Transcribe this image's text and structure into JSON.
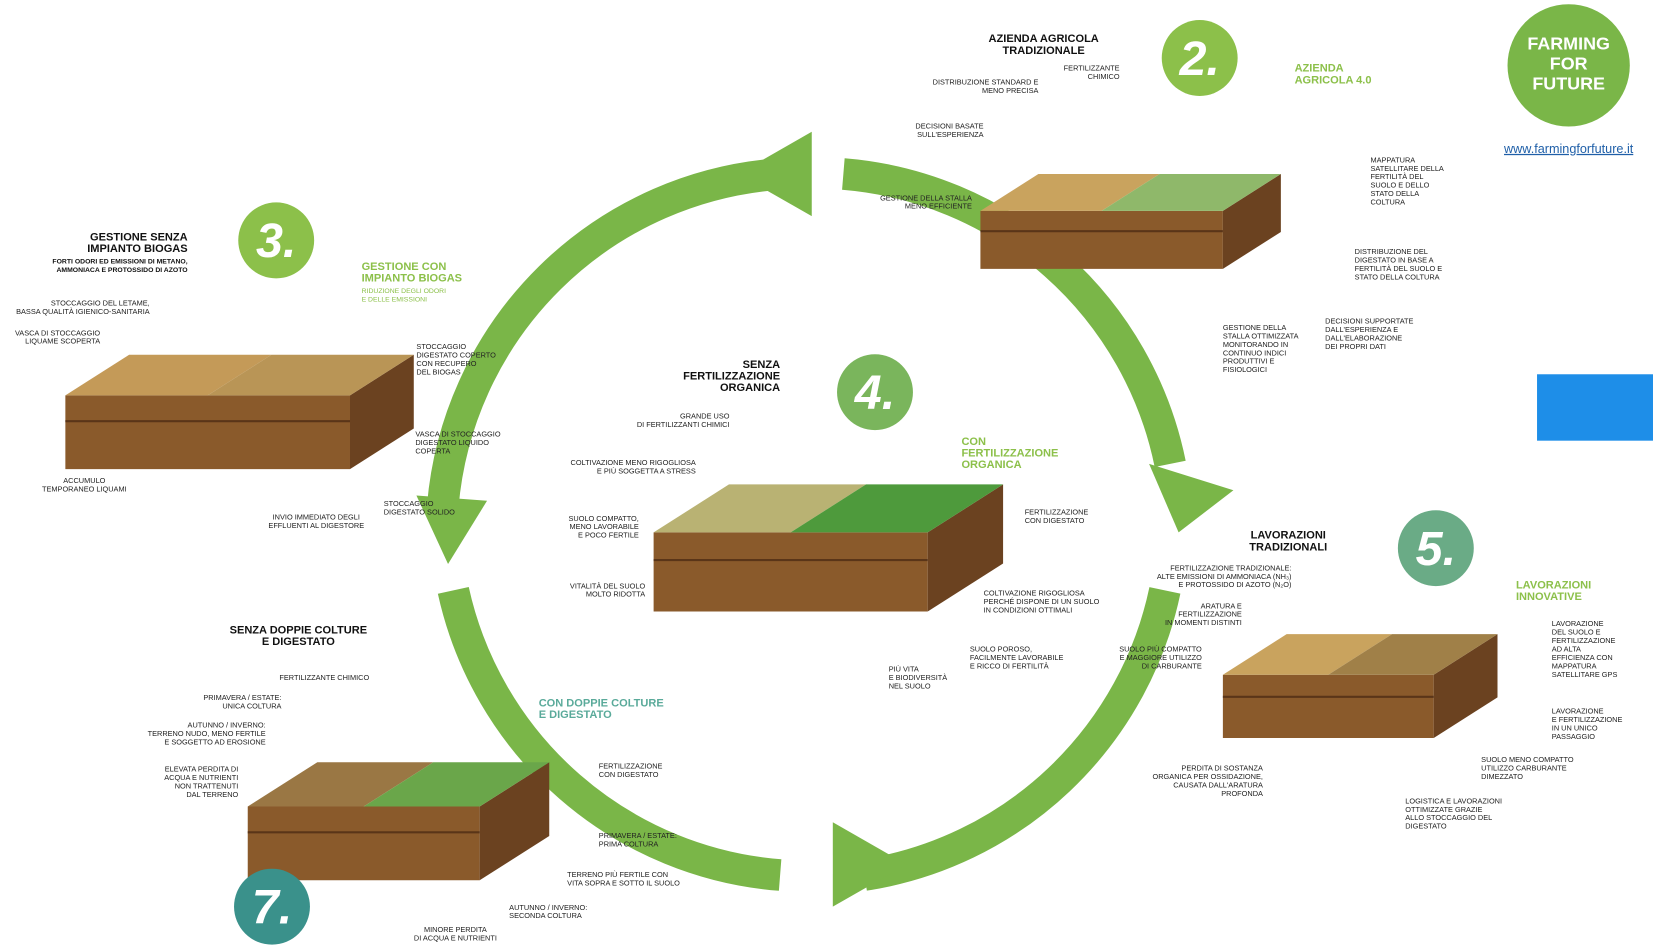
{
  "logo": {
    "lines": [
      "FARMING",
      "FOR",
      "FUTURE"
    ],
    "url": "www.farmingforfuture.it"
  },
  "section_2": {
    "number": "2.",
    "title": [
      "AZIENDA  AGRICOLA",
      "TRADIZIONALE"
    ],
    "title_innovative": [
      "AZIENDA",
      "AGRICOLA 4.0"
    ],
    "labels": [
      [
        "FERTILIZZANTE",
        "CHIMICO"
      ],
      [
        "DISTRIBUZIONE STANDARD E",
        "MENO PRECISA"
      ],
      [
        "DECISIONI BASATE",
        "SULL'ESPERIENZA"
      ],
      [
        "GESTIONE DELLA STALLA",
        "MENO EFFICIENTE"
      ],
      [
        "MAPPATURA",
        "SATELLITARE DELLA",
        "FERTILITÀ DEL",
        "SUOLO E DELLO",
        "STATO DELLA",
        "COLTURA"
      ],
      [
        "DISTRIBUZIONE DEL",
        "DIGESTATO IN BASE A",
        "FERTILITÀ DEL SUOLO E",
        "STATO DELLA COLTURA"
      ],
      [
        "DECISIONI SUPPORTATE",
        "DALL'ESPERIENZA E",
        "DALL'ELABORAZIONE",
        "DEI PROPRI DATI"
      ],
      [
        "GESTIONE DELLA",
        "STALLA OTTIMIZZATA",
        "MONITORANDO IN",
        "CONTINUO INDICI",
        "PRODUTTIVI E",
        "FISIOLOGICI"
      ]
    ]
  },
  "section_3": {
    "number": "3.",
    "title": [
      "GESTIONE SENZA",
      "IMPIANTO BIOGAS"
    ],
    "subtitle": [
      "FORTI ODORI ED EMISSIONI DI METANO,",
      "AMMONIACA E PROTOSSIDO DI AZOTO"
    ],
    "title_innovative": [
      "GESTIONE CON",
      "IMPIANTO BIOGAS"
    ],
    "subtitle_innovative": [
      "RIDUZIONE DEGLI ODORI",
      "E DELLE EMISSIONI"
    ],
    "labels": [
      [
        "STOCCAGGIO DEL LETAME,",
        "BASSA QUALITÀ IGIENICO-SANITARIA"
      ],
      [
        "VASCA DI STOCCAGGIO",
        "LIQUAME SCOPERTA"
      ],
      [
        "STOCCAGGIO",
        "DIGESTATO COPERTO",
        "CON RECUPERO",
        "DEL BIOGAS"
      ],
      [
        "VASCA DI STOCCAGGIO",
        "DIGESTATO LIQUIDO",
        "COPERTA"
      ],
      [
        "STOCCAGGIO",
        "DIGESTATO SOLIDO"
      ],
      [
        "INVIO IMMEDIATO DEGLI",
        "EFFLUENTI AL DIGESTORE"
      ],
      [
        "ACCUMULO",
        "TEMPORANEO LIQUAMI"
      ]
    ]
  },
  "section_4": {
    "number": "4.",
    "title": [
      "SENZA",
      "FERTILIZZAZIONE",
      "ORGANICA"
    ],
    "title_innovative": [
      "CON",
      "FERTILIZZAZIONE",
      "ORGANICA"
    ],
    "labels": [
      [
        "GRANDE USO",
        "DI FERTILIZZANTI CHIMICI"
      ],
      [
        "COLTIVAZIONE MENO RIGOGLIOSA",
        "E PIÙ SOGGETTA A STRESS"
      ],
      [
        "SUOLO COMPATTO,",
        "MENO LAVORABILE",
        "E POCO FERTILE"
      ],
      [
        "VITALITÀ DEL SUOLO",
        "MOLTO RIDOTTA"
      ],
      [
        "FERTILIZZAZIONE",
        "CON DIGESTATO"
      ],
      [
        "COLTIVAZIONE RIGOGLIOSA",
        "PERCHÉ DISPONE DI UN SUOLO",
        "IN CONDIZIONI OTTIMALI"
      ],
      [
        "SUOLO POROSO,",
        "FACILMENTE LAVORABILE",
        "E RICCO DI FERTILITÀ"
      ],
      [
        "PIÙ VITA",
        "E BIODIVERSITÀ",
        "NEL SUOLO"
      ]
    ]
  },
  "section_5": {
    "number": "5.",
    "title": [
      "LAVORAZIONI",
      "TRADIZIONALI"
    ],
    "title_innovative": [
      "LAVORAZIONI",
      "INNOVATIVE"
    ],
    "labels": [
      [
        "FERTILIZZAZIONE TRADIZIONALE:",
        "ALTE EMISSIONI DI AMMONIACA (NH₃)",
        "E PROTOSSIDO DI AZOTO (N₂O)"
      ],
      [
        "ARATURA E",
        "FERTILIZZAZIONE",
        "IN MOMENTI DISTINTI"
      ],
      [
        "SUOLO PIÙ COMPATTO",
        "E MAGGIORE UTILIZZO",
        "DI CARBURANTE"
      ],
      [
        "LAVORAZIONE",
        "DEL SUOLO E",
        "FERTILIZZAZIONE",
        "AD ALTA",
        "EFFICIENZA CON",
        "MAPPATURA",
        "SATELLITARE GPS"
      ],
      [
        "LAVORAZIONE",
        "E FERTILIZZAZIONE",
        "IN UN UNICO",
        "PASSAGGIO"
      ],
      [
        "SUOLO MENO COMPATTO",
        "UTILIZZO CARBURANTE",
        "DIMEZZATO"
      ],
      [
        "PERDITA DI SOSTANZA",
        "ORGANICA PER OSSIDAZIONE,",
        "CAUSATA DALL'ARATURA",
        "PROFONDA"
      ],
      [
        "LOGISTICA E LAVORAZIONI",
        "OTTIMIZZATE GRAZIE",
        "ALLO STOCCAGGIO DEL",
        "DIGESTATO"
      ]
    ]
  },
  "section_7": {
    "number": "7.",
    "title": [
      "SENZA DOPPIE COLTURE",
      "E DIGESTATO"
    ],
    "title_innovative": [
      "CON DOPPIE COLTURE",
      "E DIGESTATO"
    ],
    "labels": [
      [
        "FERTILIZZANTE CHIMICO"
      ],
      [
        "PRIMAVERA / ESTATE:",
        "UNICA COLTURA"
      ],
      [
        "AUTUNNO / INVERNO:",
        "TERRENO NUDO, MENO FERTILE",
        "E SOGGETTO AD EROSIONE"
      ],
      [
        "ELEVATA PERDITA DI",
        "ACQUA E NUTRIENTI",
        "NON TRATTENUTI",
        "DAL TERRENO"
      ],
      [
        "FERTILIZZAZIONE",
        "CON DIGESTATO"
      ],
      [
        "PRIMAVERA / ESTATE:",
        "PRIMA COLTURA"
      ],
      [
        "TERRENO PIÙ FERTILE CON",
        "VITA SOPRA E SOTTO IL SUOLO"
      ],
      [
        "AUTUNNO / INVERNO:",
        "SECONDA COLTURA"
      ],
      [
        "MINORE PERDITA",
        "DI ACQUA E NUTRIENTI"
      ]
    ]
  }
}
